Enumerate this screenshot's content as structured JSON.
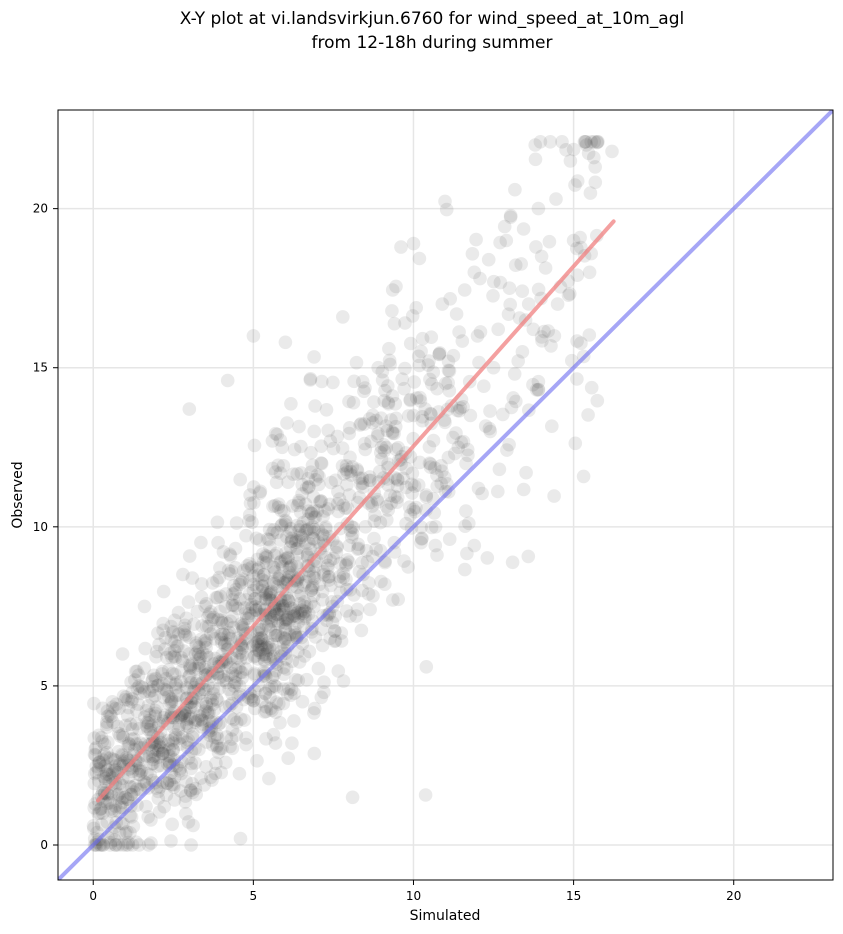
{
  "chart_data": {
    "type": "scatter",
    "title_lines": [
      "X-Y plot at vi.landsvirkjun.6760 for wind_speed_at_10m_agl",
      "from 12-18h during summer"
    ],
    "xlabel": "Simulated",
    "ylabel": "Observed",
    "xlim": [
      -1.1,
      23.1
    ],
    "ylim": [
      -1.1,
      23.1
    ],
    "xticks": [
      0,
      5,
      10,
      15,
      20
    ],
    "yticks": [
      0,
      5,
      10,
      15,
      20
    ],
    "grid": true,
    "colors": {
      "points": "#333333",
      "fit_line": "#f08080",
      "identity_line": "#6b6bf0",
      "grid": "#e6e6e6"
    },
    "fit_line": {
      "x": [
        0.15,
        16.25
      ],
      "y": [
        1.4,
        19.6
      ]
    },
    "identity_line": {
      "x": [
        -1.1,
        23.1
      ],
      "y": [
        -1.1,
        23.1
      ]
    },
    "point_sample": {
      "x": [
        0.5,
        0.8,
        1.0,
        1.2,
        1.5,
        2.0,
        2.5,
        3.0,
        3.5,
        4.0,
        4.5,
        5.0,
        5.5,
        6.0,
        6.5,
        7.0,
        7.5,
        8.0,
        8.5,
        9.0,
        9.5,
        10.0,
        10.5,
        11.0,
        11.5,
        12.0,
        12.5,
        13.0,
        13.5,
        14.0,
        14.5,
        15.0,
        15.5,
        16.2,
        0.6,
        1.1,
        1.6,
        2.2,
        2.8,
        3.3,
        3.9,
        4.4,
        4.9,
        5.4,
        5.9,
        6.4,
        6.9,
        7.4,
        7.9,
        8.4,
        8.9,
        9.4,
        9.9,
        10.4,
        10.9,
        11.4,
        11.9,
        12.4,
        12.9,
        13.4,
        13.9,
        14.4,
        14.9,
        0.2,
        3.0,
        4.2,
        5.0,
        6.0,
        10.0,
        10.4,
        8.1,
        4.6,
        13.8,
        15.4
      ],
      "y": [
        2.0,
        3.5,
        1.5,
        4.5,
        2.8,
        5.0,
        3.2,
        6.0,
        5.5,
        7.0,
        6.5,
        8.0,
        6.2,
        9.0,
        8.5,
        10.5,
        9.0,
        11.0,
        10.0,
        12.5,
        11.5,
        13.5,
        12.0,
        14.5,
        14.0,
        16.0,
        15.0,
        17.5,
        16.5,
        18.5,
        17.0,
        19.0,
        18.0,
        21.8,
        4.5,
        2.5,
        7.5,
        4.0,
        8.5,
        3.0,
        9.5,
        5.0,
        11.0,
        4.2,
        12.5,
        7.0,
        13.0,
        6.5,
        11.8,
        8.0,
        15.0,
        9.5,
        14.0,
        11.0,
        17.0,
        12.5,
        18.0,
        13.0,
        19.0,
        15.5,
        20.0,
        16.0,
        21.5,
        1.0,
        13.7,
        14.6,
        16.0,
        15.8,
        18.9,
        5.6,
        1.5,
        0.2,
        22.0,
        22.0
      ]
    }
  }
}
